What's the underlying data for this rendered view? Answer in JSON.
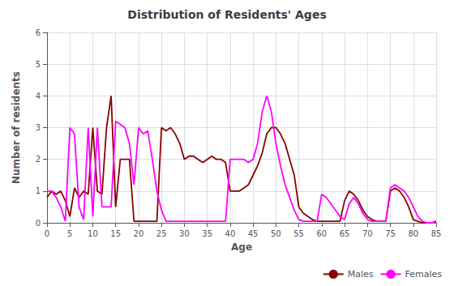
{
  "chart_data": {
    "type": "line",
    "title": "Distribution of Residents' Ages",
    "xlabel": "Age",
    "ylabel": "Number of residents",
    "xlim": [
      0,
      85
    ],
    "ylim": [
      0,
      6
    ],
    "xticks": [
      0,
      5,
      10,
      15,
      20,
      25,
      30,
      35,
      40,
      45,
      50,
      55,
      60,
      65,
      70,
      75,
      80,
      85
    ],
    "yticks": [
      0,
      1,
      2,
      3,
      4,
      5,
      6
    ],
    "grid": true,
    "legend": "lower right",
    "series": [
      {
        "name": "Males",
        "color": "#8b0000",
        "x": [
          0,
          1,
          2,
          3,
          4,
          5,
          6,
          7,
          8,
          9,
          10,
          11,
          12,
          13,
          14,
          15,
          16,
          17,
          18,
          19,
          20,
          21,
          22,
          23,
          24,
          25,
          26,
          27,
          28,
          29,
          30,
          31,
          32,
          33,
          34,
          35,
          36,
          37,
          38,
          39,
          40,
          41,
          42,
          43,
          44,
          45,
          46,
          47,
          48,
          49,
          50,
          51,
          52,
          53,
          54,
          55,
          56,
          57,
          58,
          59,
          60,
          61,
          62,
          63,
          64,
          65,
          66,
          67,
          68,
          69,
          70,
          71,
          72,
          73,
          74,
          75,
          76,
          77,
          78,
          79,
          80,
          81,
          82,
          83,
          84,
          85
        ],
        "values": [
          0.8,
          1.0,
          0.9,
          1.0,
          0.7,
          0.2,
          1.1,
          0.8,
          1.0,
          0.9,
          3.0,
          1.0,
          0.9,
          3.0,
          4.0,
          0.5,
          2.0,
          2.0,
          2.0,
          0.05,
          0.05,
          0.05,
          0.05,
          0.05,
          0.05,
          3.0,
          2.9,
          3.0,
          2.8,
          2.5,
          2.0,
          2.1,
          2.1,
          2.0,
          1.9,
          2.0,
          2.1,
          2.0,
          2.0,
          1.9,
          1.0,
          1.0,
          1.0,
          1.1,
          1.2,
          1.5,
          1.8,
          2.2,
          2.8,
          3.0,
          3.0,
          2.8,
          2.5,
          2.0,
          1.5,
          0.5,
          0.3,
          0.2,
          0.1,
          0.05,
          0.05,
          0.05,
          0.05,
          0.05,
          0.05,
          0.7,
          1.0,
          0.9,
          0.7,
          0.4,
          0.2,
          0.1,
          0.05,
          0.05,
          0.05,
          1.0,
          1.1,
          1.0,
          0.8,
          0.5,
          0.1,
          0.05,
          0.0,
          0.0,
          0.0,
          0.05
        ]
      },
      {
        "name": "Females",
        "color": "#ff00ff",
        "x": [
          0,
          1,
          2,
          3,
          4,
          5,
          6,
          7,
          8,
          9,
          10,
          11,
          12,
          13,
          14,
          15,
          16,
          17,
          18,
          19,
          20,
          21,
          22,
          23,
          24,
          25,
          26,
          27,
          28,
          29,
          30,
          31,
          32,
          33,
          34,
          35,
          36,
          37,
          38,
          39,
          40,
          41,
          42,
          43,
          44,
          45,
          46,
          47,
          48,
          49,
          50,
          51,
          52,
          53,
          54,
          55,
          56,
          57,
          58,
          59,
          60,
          61,
          62,
          63,
          64,
          65,
          66,
          67,
          68,
          69,
          70,
          71,
          72,
          73,
          74,
          75,
          76,
          77,
          78,
          79,
          80,
          81,
          82,
          83,
          84,
          85
        ],
        "values": [
          1.0,
          1.0,
          0.8,
          0.5,
          0.05,
          3.0,
          2.8,
          0.5,
          0.1,
          3.0,
          0.2,
          3.0,
          0.5,
          0.5,
          0.5,
          3.2,
          3.1,
          3.0,
          2.5,
          1.2,
          3.0,
          2.8,
          2.9,
          2.0,
          1.0,
          0.4,
          0.05,
          0.05,
          0.05,
          0.05,
          0.05,
          0.05,
          0.05,
          0.05,
          0.05,
          0.05,
          0.05,
          0.05,
          0.05,
          0.05,
          2.0,
          2.0,
          2.0,
          2.0,
          1.9,
          2.0,
          2.5,
          3.5,
          4.0,
          3.5,
          2.5,
          1.8,
          1.2,
          0.8,
          0.4,
          0.1,
          0.05,
          0.05,
          0.05,
          0.05,
          0.9,
          0.8,
          0.6,
          0.4,
          0.2,
          0.1,
          0.6,
          0.8,
          0.6,
          0.3,
          0.1,
          0.05,
          0.05,
          0.05,
          0.05,
          1.1,
          1.2,
          1.1,
          1.0,
          0.8,
          0.5,
          0.2,
          0.05,
          0.0,
          0.0,
          0.0
        ]
      }
    ]
  }
}
